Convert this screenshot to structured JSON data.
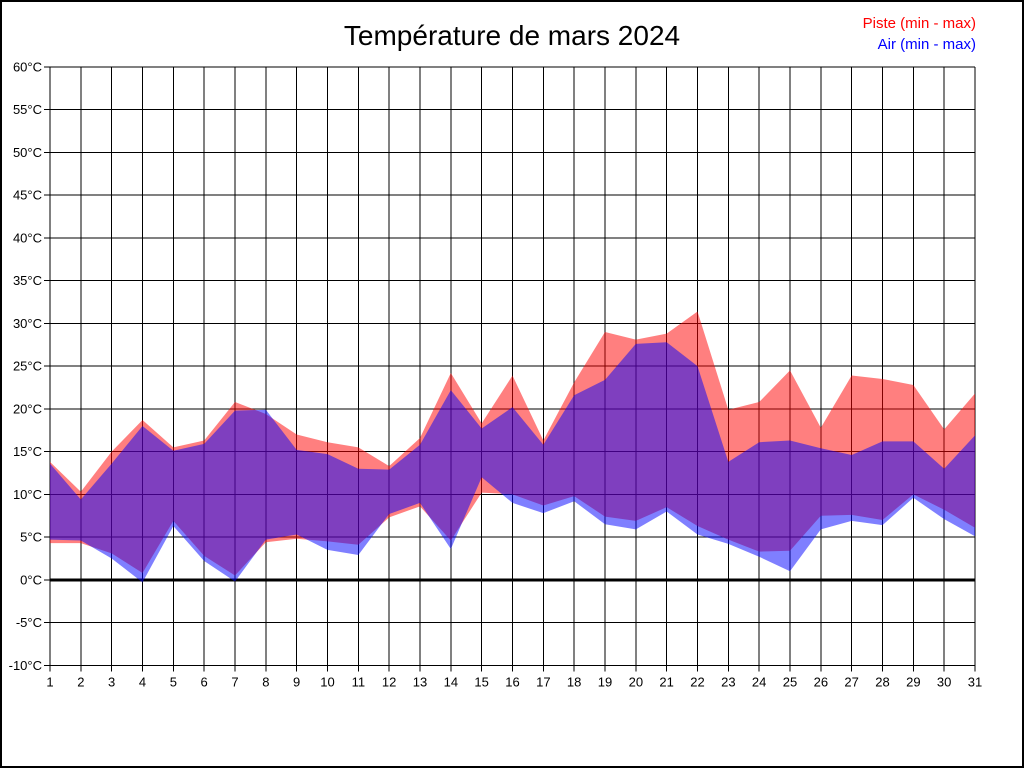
{
  "title": "Température de mars 2024",
  "legend": [
    {
      "label": "Piste (min - max)",
      "color": "#ff0000"
    },
    {
      "label": "Air (min - max)",
      "color": "#0000ff"
    }
  ],
  "chart_data": {
    "type": "area",
    "subtype": "min-max-bands",
    "title": "Température de mars 2024",
    "xlabel": "",
    "ylabel": "",
    "y_unit": "°C",
    "ylim": [
      -10,
      60
    ],
    "y_tick_step": 5,
    "x": [
      1,
      2,
      3,
      4,
      5,
      6,
      7,
      8,
      9,
      10,
      11,
      12,
      13,
      14,
      15,
      16,
      17,
      18,
      19,
      20,
      21,
      22,
      23,
      24,
      25,
      26,
      27,
      28,
      29,
      30,
      31
    ],
    "x_tick_labels": [
      "1",
      "2",
      "3",
      "4",
      "5",
      "6",
      "7",
      "8",
      "9",
      "10",
      "11",
      "12",
      "13",
      "14",
      "15",
      "16",
      "17",
      "18",
      "19",
      "20",
      "21",
      "22",
      "23",
      "24",
      "25",
      "26",
      "27",
      "28",
      "29",
      "30",
      "31"
    ],
    "y_tick_labels": [
      "60°C",
      "55°C",
      "50°C",
      "45°C",
      "40°C",
      "35°C",
      "30°C",
      "25°C",
      "20°C",
      "15°C",
      "10°C",
      "5°C",
      "0°C",
      "-5°C",
      "-10°C"
    ],
    "grid": true,
    "zero_line": true,
    "legend_position": "top-right",
    "grid_color": "#000000",
    "background": "#ffffff",
    "series": [
      {
        "name": "Piste (min - max)",
        "fill": "rgba(255,0,0,0.5)",
        "legend_color": "#ff0000",
        "min": [
          4.3,
          4.3,
          3.1,
          0.8,
          6.9,
          2.8,
          0.5,
          4.4,
          4.8,
          4.5,
          4.1,
          7.3,
          8.6,
          4.6,
          10.2,
          10.0,
          8.7,
          9.8,
          7.4,
          6.9,
          8.5,
          6.3,
          4.7,
          3.3,
          3.4,
          7.5,
          7.6,
          7.0,
          10.0,
          8.2,
          6.1
        ],
        "max": [
          13.8,
          10.3,
          15.0,
          18.7,
          15.5,
          16.3,
          20.8,
          19.4,
          17.0,
          16.1,
          15.5,
          13.3,
          16.6,
          24.2,
          18.3,
          23.9,
          16.3,
          23.1,
          29.0,
          28.1,
          28.8,
          31.4,
          19.9,
          20.8,
          24.5,
          17.8,
          23.9,
          23.5,
          22.8,
          17.6,
          21.8
        ]
      },
      {
        "name": "Air (min - max)",
        "fill": "rgba(0,0,255,0.5)",
        "legend_color": "#0000ff",
        "min": [
          4.7,
          4.6,
          2.5,
          -0.3,
          6.3,
          2.2,
          -0.2,
          4.7,
          5.3,
          3.5,
          2.9,
          7.7,
          9.0,
          3.6,
          12.0,
          9.0,
          7.8,
          9.2,
          6.5,
          5.9,
          8.0,
          5.3,
          4.2,
          2.7,
          1.0,
          5.9,
          6.9,
          6.4,
          9.6,
          7.1,
          5.1
        ],
        "max": [
          13.6,
          9.4,
          13.6,
          18.0,
          15.1,
          15.9,
          19.8,
          19.9,
          15.2,
          14.7,
          13.0,
          12.9,
          15.8,
          22.2,
          17.7,
          20.2,
          15.8,
          21.6,
          23.4,
          27.6,
          27.8,
          25.0,
          13.8,
          16.1,
          16.3,
          15.4,
          14.6,
          16.2,
          16.2,
          13.0,
          16.9
        ]
      }
    ]
  }
}
